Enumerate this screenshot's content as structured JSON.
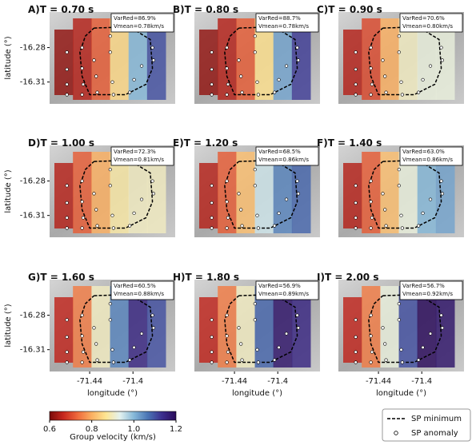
{
  "chart_data": [
    {
      "type": "heatmap",
      "label": "A)",
      "title": "T = 0.70 s",
      "varred": "VarRed=86.9%",
      "vmean": "Vmean=0.78km/s",
      "xlim": [
        -71.477,
        -71.361
      ],
      "ylim": [
        -16.329,
        -16.249
      ],
      "values": [
        0.62,
        0.65,
        0.72,
        0.85,
        1.0,
        1.1
      ],
      "ylabel": "latitude (°)",
      "yticks": [
        -16.28,
        -16.31
      ]
    },
    {
      "type": "heatmap",
      "label": "B)",
      "title": "T = 0.80 s",
      "varred": "VarRed=88.7%",
      "vmean": "Vmean=0.78km/s",
      "xlim": [
        -71.477,
        -71.361
      ],
      "ylim": [
        -16.329,
        -16.249
      ],
      "values": [
        0.62,
        0.65,
        0.72,
        0.86,
        1.02,
        1.12
      ]
    },
    {
      "type": "heatmap",
      "label": "C)",
      "title": "T = 0.90 s",
      "varred": "VarRed=70.6%",
      "vmean": "Vmean=0.80km/s",
      "xlim": [
        -71.477,
        -71.361
      ],
      "ylim": [
        -16.329,
        -16.249
      ],
      "values": [
        0.65,
        0.7,
        0.8,
        0.9,
        0.92,
        0.92
      ]
    },
    {
      "type": "heatmap",
      "label": "D)",
      "title": "T = 1.00 s",
      "varred": "VarRed=72.3%",
      "vmean": "Vmean=0.81km/s",
      "xlim": [
        -71.477,
        -71.361
      ],
      "ylim": [
        -16.329,
        -16.249
      ],
      "values": [
        0.65,
        0.72,
        0.8,
        0.88,
        0.9,
        0.9
      ],
      "ylabel": "latitude (°)",
      "yticks": [
        -16.28,
        -16.31
      ]
    },
    {
      "type": "heatmap",
      "label": "E)",
      "title": "T = 1.20 s",
      "varred": "VarRed=68.5%",
      "vmean": "Vmean=0.86km/s",
      "xlim": [
        -71.477,
        -71.361
      ],
      "ylim": [
        -16.329,
        -16.249
      ],
      "values": [
        0.65,
        0.72,
        0.82,
        0.95,
        1.05,
        1.08
      ]
    },
    {
      "type": "heatmap",
      "label": "F)",
      "title": "T = 1.40 s",
      "varred": "VarRed=63.0%",
      "vmean": "Vmean=0.86km/s",
      "xlim": [
        -71.477,
        -71.361
      ],
      "ylim": [
        -16.329,
        -16.249
      ],
      "values": [
        0.65,
        0.72,
        0.82,
        0.92,
        1.0,
        1.02
      ]
    },
    {
      "type": "heatmap",
      "label": "G)",
      "title": "T = 1.60 s",
      "varred": "VarRed=60.5%",
      "vmean": "Vmean=0.88km/s",
      "xlim": [
        -71.477,
        -71.361
      ],
      "ylim": [
        -16.329,
        -16.249
      ],
      "values": [
        0.66,
        0.75,
        0.9,
        1.05,
        1.15,
        1.1
      ],
      "ylabel": "latitude (°)",
      "yticks": [
        -16.28,
        -16.31
      ],
      "xlabel": "longitude (°)",
      "xticks": [
        -71.44,
        -71.4
      ]
    },
    {
      "type": "heatmap",
      "label": "H)",
      "title": "T = 1.80 s",
      "varred": "VarRed=56.9%",
      "vmean": "Vmean=0.89km/s",
      "xlim": [
        -71.477,
        -71.361
      ],
      "ylim": [
        -16.329,
        -16.249
      ],
      "values": [
        0.66,
        0.75,
        0.9,
        1.08,
        1.18,
        1.15
      ],
      "xlabel": "longitude (°)",
      "xticks": [
        -71.44,
        -71.4
      ]
    },
    {
      "type": "heatmap",
      "label": "I)",
      "title": "T = 2.00 s",
      "varred": "VarRed=56.7%",
      "vmean": "Vmean=0.92km/s",
      "xlim": [
        -71.477,
        -71.361
      ],
      "ylim": [
        -16.329,
        -16.249
      ],
      "values": [
        0.66,
        0.75,
        0.92,
        1.1,
        1.2,
        1.18
      ],
      "xlabel": "longitude (°)",
      "xticks": [
        -71.44,
        -71.4
      ]
    }
  ],
  "sp_minimum": {
    "lon": [
      -71.436,
      -71.403,
      -71.384,
      -71.382,
      -71.388,
      -71.407,
      -71.44,
      -71.447,
      -71.449,
      -71.444,
      -71.436
    ],
    "lat": [
      -16.263,
      -16.262,
      -16.273,
      -16.298,
      -16.312,
      -16.321,
      -16.321,
      -16.305,
      -16.284,
      -16.27,
      -16.263
    ]
  },
  "sp_anomaly": {
    "lon": [
      -71.461,
      -71.461,
      -71.461,
      -71.447,
      -71.447,
      -71.446,
      -71.436,
      -71.434,
      -71.433,
      -71.421,
      -71.419,
      -71.418,
      -71.403,
      -71.399,
      -71.392,
      -71.382,
      -71.381,
      -71.421,
      -71.461,
      -71.447
    ],
    "lat": [
      -16.284,
      -16.299,
      -16.312,
      -16.28,
      -16.298,
      -16.312,
      -16.291,
      -16.305,
      -16.319,
      -16.284,
      -16.31,
      -16.321,
      -16.319,
      -16.308,
      -16.296,
      -16.28,
      -16.291,
      -16.27,
      -16.321,
      -16.321
    ]
  },
  "colorbar": {
    "label": "Group velocity (km/s)",
    "clim": [
      0.6,
      1.2
    ],
    "ticks": [
      0.6,
      0.8,
      {
        "value": 1.0,
        "label": "1.0"
      },
      1.2
    ],
    "colors": [
      "#7a0a0a",
      "#c8281e",
      "#ef6a3c",
      "#fbb062",
      "#fee592",
      "#e4f2ef",
      "#86b8d8",
      "#4a74b4",
      "#3c2f8e",
      "#2a0a5a"
    ]
  },
  "legend": {
    "entries": [
      "SP minimum",
      "SP anomaly"
    ]
  }
}
